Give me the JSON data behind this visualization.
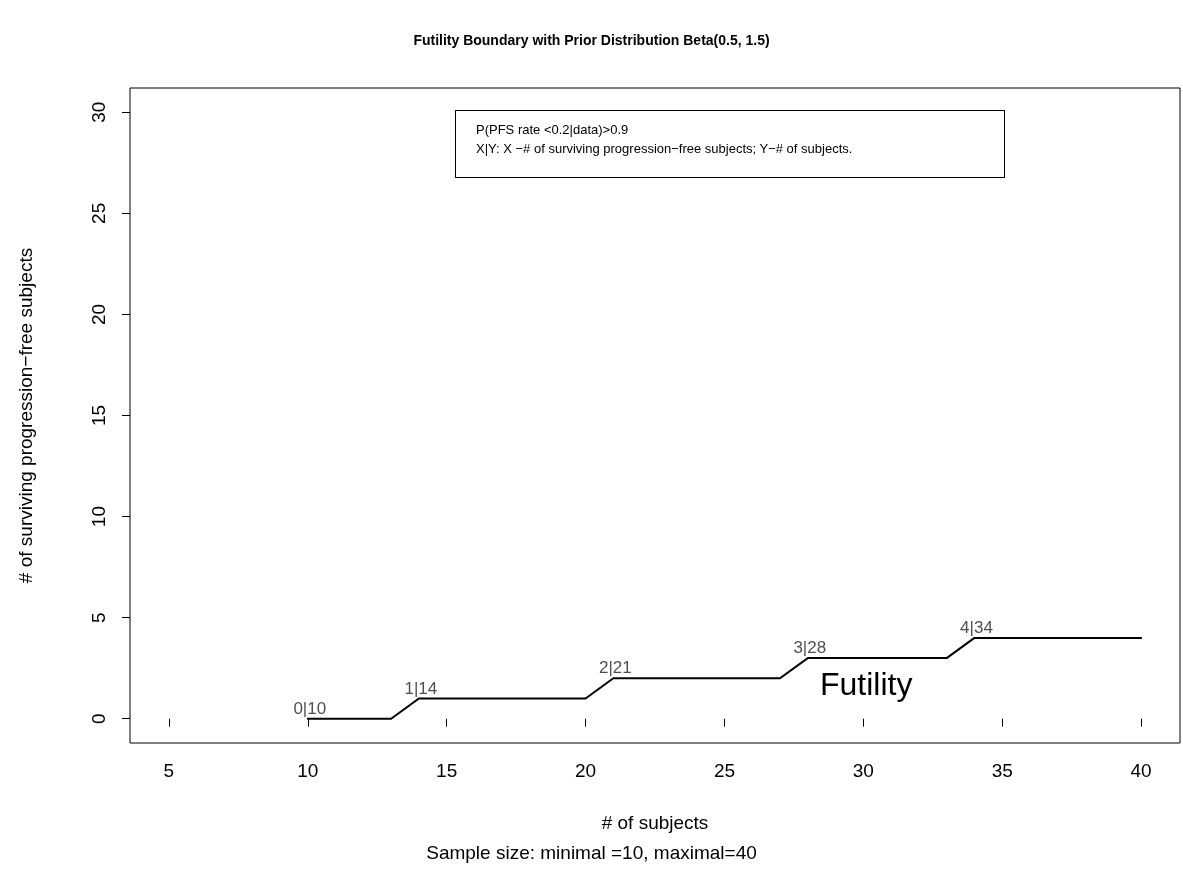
{
  "chart_data": {
    "type": "line",
    "title": "Futility Boundary with Prior Distribution Beta(0.5, 1.5)",
    "xlabel": "# of subjects",
    "ylabel": "# of surviving progression−free subjects",
    "x": [
      10,
      13,
      14,
      20,
      21,
      27,
      28,
      33,
      34,
      40
    ],
    "series": [
      {
        "color": "#000000",
        "values": [
          0,
          0,
          1,
          1,
          2,
          2,
          3,
          3,
          4,
          4
        ]
      }
    ],
    "xlim": [
      3.6,
      41.4
    ],
    "xticks": [
      5,
      10,
      15,
      20,
      25,
      30,
      35,
      40
    ],
    "ylim": [
      -1.2,
      31.2
    ],
    "yticks": [
      0,
      5,
      10,
      15,
      20,
      25,
      30
    ],
    "grid": false,
    "marker": "none",
    "line_style": "solid",
    "annotations": [
      "P(PFS rate <0.2|data)>0.9",
      "X|Y: X −# of surviving progression−free subjects; Y−# of subjects.",
      "Sample size: minimal =10, maximal=40",
      {
        "text": "0|10",
        "x": 10,
        "y": 0
      },
      {
        "text": "1|14",
        "x": 14,
        "y": 1
      },
      {
        "text": "2|21",
        "x": 21,
        "y": 2
      },
      {
        "text": "3|28",
        "x": 28,
        "y": 3
      },
      {
        "text": "4|34",
        "x": 34,
        "y": 4
      },
      "Futility"
    ]
  }
}
